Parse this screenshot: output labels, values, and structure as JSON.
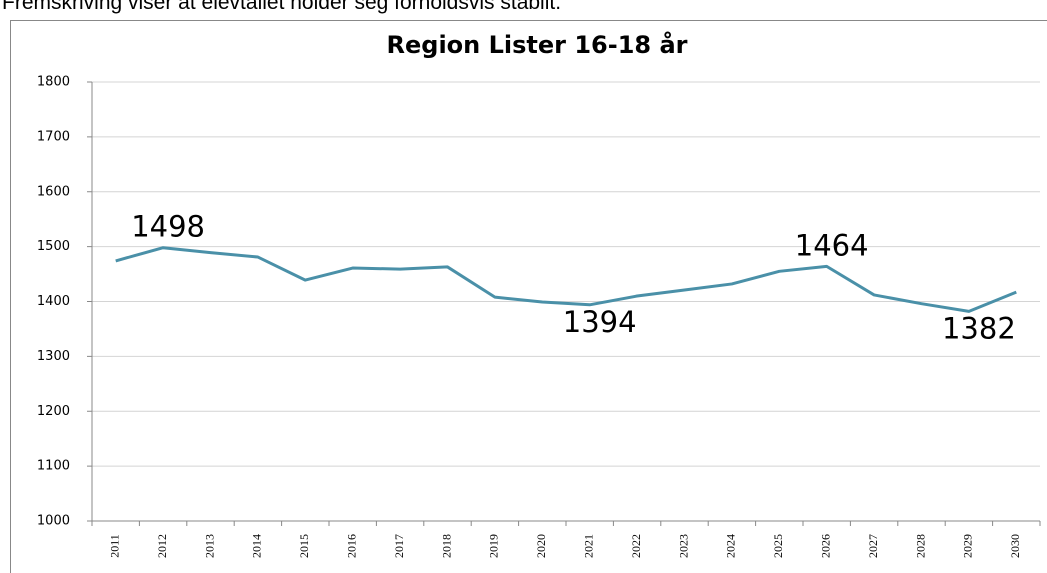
{
  "caption": "Fremskriving viser at elevtallet holder seg forholdsvis stabilt.",
  "chart_data": {
    "type": "line",
    "title": "Region Lister 16-18 år",
    "categories": [
      "2011",
      "2012",
      "2013",
      "2014",
      "2015",
      "2016",
      "2017",
      "2018",
      "2019",
      "2020",
      "2021",
      "2022",
      "2023",
      "2024",
      "2025",
      "2026",
      "2027",
      "2028",
      "2029",
      "2030"
    ],
    "values": [
      1474,
      1498,
      1489,
      1481,
      1439,
      1461,
      1459,
      1463,
      1408,
      1399,
      1394,
      1410,
      1421,
      1432,
      1455,
      1464,
      1412,
      1396,
      1382,
      1417
    ],
    "value_labels": [
      null,
      "1498",
      null,
      null,
      null,
      null,
      null,
      null,
      null,
      null,
      "1394",
      null,
      null,
      null,
      null,
      "1464",
      null,
      null,
      "1382",
      null
    ],
    "color": "#4a90a8",
    "ylim": [
      1000,
      1800
    ],
    "yticks": [
      1000,
      1100,
      1200,
      1300,
      1400,
      1500,
      1600,
      1700,
      1800
    ],
    "grid": true
  }
}
